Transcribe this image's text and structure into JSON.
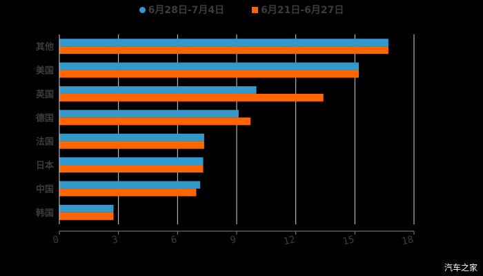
{
  "chart_data": {
    "type": "bar",
    "orientation": "horizontal",
    "title": "",
    "xlabel": "",
    "ylabel": "",
    "categories": [
      "其他",
      "美国",
      "英国",
      "德国",
      "法国",
      "日本",
      "中国",
      "韩国"
    ],
    "series": [
      {
        "name": "6月28日-7月4日",
        "color": "#3399cc",
        "values": [
          16.7,
          15.2,
          10.0,
          9.1,
          7.35,
          7.3,
          7.15,
          2.75
        ]
      },
      {
        "name": "6月21日-6月27日",
        "color": "#ff6600",
        "values": [
          16.7,
          15.2,
          13.4,
          9.7,
          7.35,
          7.3,
          6.95,
          2.75
        ]
      }
    ],
    "xlim": [
      0,
      18
    ],
    "x_ticks": [
      "0",
      "3",
      "6",
      "9",
      "12",
      "15",
      "18"
    ],
    "grid": true,
    "legend_position": "top"
  },
  "legend": {
    "items": [
      {
        "label": "6月28日-7月4日",
        "color": "#3399cc"
      },
      {
        "label": "6月21日-6月27日",
        "color": "#ff6600"
      }
    ]
  },
  "watermark": "汽车之家"
}
